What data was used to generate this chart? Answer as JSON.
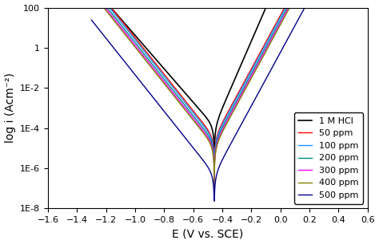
{
  "title": "",
  "xlabel": "E (V vs. SCE)",
  "ylabel": "log i (Acm⁻²)",
  "xlim": [
    -1.6,
    0.6
  ],
  "ylim_log": [
    1e-08,
    100
  ],
  "legend_labels": [
    "1 M HCl",
    "50 ppm",
    "100 ppm",
    "200 ppm",
    "300 ppm",
    "400 ppm",
    "500 ppm"
  ],
  "colors": [
    "black",
    "#FF0000",
    "#1E90FF",
    "#008B8B",
    "#FF00FF",
    "#808000",
    "#00008B"
  ],
  "corr_potentials": [
    -0.455,
    -0.455,
    -0.455,
    -0.455,
    -0.455,
    -0.455,
    -0.455
  ],
  "icorr": [
    0.00012,
    3.5e-05,
    2.8e-05,
    2e-05,
    1.5e-05,
    1.2e-05,
    5e-07
  ],
  "ba": [
    0.06,
    0.075,
    0.075,
    0.075,
    0.075,
    0.075,
    0.075
  ],
  "bc": [
    0.12,
    0.11,
    0.11,
    0.11,
    0.11,
    0.11,
    0.11
  ],
  "E_left": [
    -1.35,
    -1.3,
    -1.3,
    -1.3,
    -1.3,
    -1.3,
    -1.3
  ],
  "E_right": [
    0.55,
    0.55,
    0.55,
    0.55,
    0.55,
    0.55,
    0.55
  ],
  "background_color": "white",
  "tick_label_size": 8,
  "axis_label_size": 10,
  "legend_fontsize": 8
}
